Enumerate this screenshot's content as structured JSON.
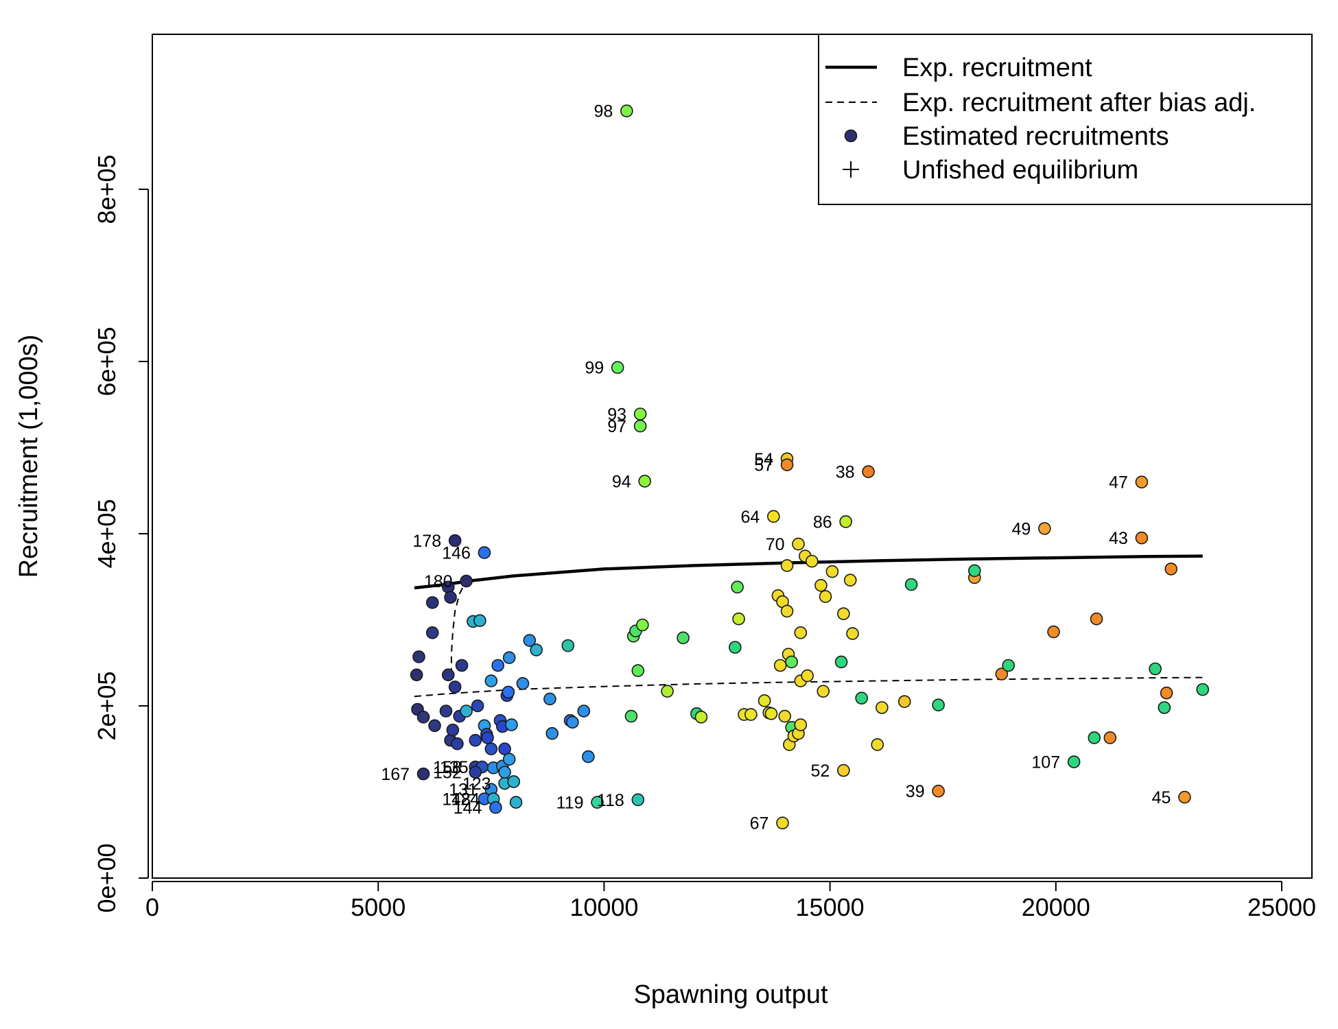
{
  "chart_data": {
    "type": "scatter",
    "title": "",
    "xlabel": "Spawning output",
    "ylabel": "Recruitment (1,000s)",
    "xlim": [
      0,
      25000
    ],
    "ylim": [
      0,
      980000
    ],
    "x_ticks": [
      0,
      5000,
      10000,
      15000,
      20000,
      25000
    ],
    "x_tick_labels": [
      "0",
      "5000",
      "10000",
      "15000",
      "20000",
      "25000"
    ],
    "y_ticks": [
      0,
      200000,
      400000,
      600000,
      800000
    ],
    "y_tick_labels": [
      "0e+00",
      "2e+05",
      "4e+05",
      "6e+05",
      "8e+05"
    ],
    "grid": false,
    "legend": {
      "placement": "top-right",
      "entries": [
        {
          "label": "Exp. recruitment",
          "symbol": "solid-line"
        },
        {
          "label": "Exp. recruitment after bias adj.",
          "symbol": "dashed-line"
        },
        {
          "label": "Estimated recruitments",
          "symbol": "filled-circle"
        },
        {
          "label": "Unfished equilibrium",
          "symbol": "plus"
        }
      ]
    },
    "lines": [
      {
        "name": "Exp. recruitment",
        "style": "solid",
        "x": [
          5800,
          6500,
          7000,
          8000,
          10000,
          12000,
          14000,
          16000,
          18000,
          20000,
          22000,
          23250
        ],
        "y": [
          337000,
          341000,
          345000,
          351000,
          359000,
          363000,
          366000,
          368500,
          370500,
          372000,
          373500,
          374000
        ]
      },
      {
        "name": "Exp. recruitment after bias adj.",
        "style": "dashed",
        "x": [
          5800,
          6500,
          8000,
          10000,
          12000,
          14000,
          16000,
          18000,
          20000,
          22000,
          23250
        ],
        "y": [
          211000,
          214000,
          219000,
          222500,
          225500,
          227500,
          229000,
          230500,
          231500,
          232500,
          233000
        ]
      },
      {
        "name": "Exp. recruitment after bias adj. (early years)",
        "style": "dashed",
        "x": [
          6620,
          6620,
          6650,
          6700,
          6800,
          6950
        ],
        "y": [
          236000,
          260000,
          285000,
          310000,
          330000,
          346000
        ]
      }
    ],
    "points": [
      {
        "label": "98",
        "x": 10500,
        "y": 891000,
        "color": "#7ff24a"
      },
      {
        "label": "99",
        "x": 10300,
        "y": 593000,
        "color": "#61f35f"
      },
      {
        "label": "93",
        "x": 10800,
        "y": 539000,
        "color": "#86f244"
      },
      {
        "label": "97",
        "x": 10800,
        "y": 525000,
        "color": "#74f350"
      },
      {
        "label": "94",
        "x": 10900,
        "y": 461000,
        "color": "#8ef23d"
      },
      {
        "label": "54",
        "x": 14050,
        "y": 487000,
        "color": "#f0c629"
      },
      {
        "label": "57",
        "x": 14050,
        "y": 480000,
        "color": "#f28a27"
      },
      {
        "label": "38",
        "x": 15850,
        "y": 472000,
        "color": "#f07f22"
      },
      {
        "label": "47",
        "x": 21900,
        "y": 460000,
        "color": "#f39c2c"
      },
      {
        "label": "64",
        "x": 13750,
        "y": 420000,
        "color": "#f7e021"
      },
      {
        "label": "86",
        "x": 15350,
        "y": 414000,
        "color": "#c2ee2f"
      },
      {
        "label": "49",
        "x": 19750,
        "y": 406000,
        "color": "#f3a531"
      },
      {
        "label": "43",
        "x": 21900,
        "y": 395000,
        "color": "#f28a27"
      },
      {
        "label": "70",
        "x": 14300,
        "y": 388000,
        "color": "#f2da2b"
      },
      {
        "label": "178",
        "x": 6700,
        "y": 392000,
        "color": "#2c2f72"
      },
      {
        "label": "146",
        "x": 7350,
        "y": 378000,
        "color": "#2a71ef"
      },
      {
        "label": "180",
        "x": 6950,
        "y": 345000,
        "color": "#2d2d6e"
      },
      {
        "label": "52",
        "x": 15300,
        "y": 125000,
        "color": "#f5cf2c"
      },
      {
        "label": "39",
        "x": 17400,
        "y": 101000,
        "color": "#f58a27"
      },
      {
        "label": "107",
        "x": 20400,
        "y": 135000,
        "color": "#2ed67e"
      },
      {
        "label": "45",
        "x": 22850,
        "y": 94000,
        "color": "#f29a2c"
      },
      {
        "label": "67",
        "x": 13950,
        "y": 64000,
        "color": "#f2da2b"
      },
      {
        "label": "167",
        "x": 6000,
        "y": 121000,
        "color": "#2d2f72"
      },
      {
        "label": "158",
        "x": 7150,
        "y": 129000,
        "color": "#2b3ca0"
      },
      {
        "label": "135",
        "x": 7300,
        "y": 129000,
        "color": "#2a53c4"
      },
      {
        "label": "152",
        "x": 7150,
        "y": 123000,
        "color": "#2b3ca0"
      },
      {
        "label": "131",
        "x": 7500,
        "y": 103000,
        "color": "#2d8fe6"
      },
      {
        "label": "123",
        "x": 7800,
        "y": 110000,
        "color": "#2cb2cf"
      },
      {
        "label": "148",
        "x": 7350,
        "y": 92000,
        "color": "#2a71ef"
      },
      {
        "label": "124",
        "x": 7550,
        "y": 92000,
        "color": "#2cb2cf"
      },
      {
        "label": "144",
        "x": 7600,
        "y": 82000,
        "color": "#2a71ef"
      },
      {
        "label": "119",
        "x": 9850,
        "y": 88000,
        "color": "#31d7a1"
      },
      {
        "label": "118",
        "x": 10750,
        "y": 91000,
        "color": "#2cc4b0"
      },
      {
        "label": "",
        "x": 5850,
        "y": 236000,
        "color": "#2e3070"
      },
      {
        "label": "",
        "x": 5900,
        "y": 257000,
        "color": "#2e3576"
      },
      {
        "label": "",
        "x": 5870,
        "y": 196000,
        "color": "#2e3070"
      },
      {
        "label": "",
        "x": 6000,
        "y": 187000,
        "color": "#2f3779"
      },
      {
        "label": "",
        "x": 6200,
        "y": 285000,
        "color": "#2d3a85"
      },
      {
        "label": "",
        "x": 6200,
        "y": 320000,
        "color": "#2c3478"
      },
      {
        "label": "",
        "x": 6250,
        "y": 177000,
        "color": "#2d3a82"
      },
      {
        "label": "",
        "x": 6500,
        "y": 194000,
        "color": "#2c3b8c"
      },
      {
        "label": "",
        "x": 6550,
        "y": 236000,
        "color": "#2d3581"
      },
      {
        "label": "",
        "x": 6550,
        "y": 338000,
        "color": "#2c2f72"
      },
      {
        "label": "",
        "x": 6600,
        "y": 326000,
        "color": "#2c2f72"
      },
      {
        "label": "",
        "x": 6600,
        "y": 160000,
        "color": "#2c3a8a"
      },
      {
        "label": "",
        "x": 6650,
        "y": 172000,
        "color": "#2c3a96"
      },
      {
        "label": "",
        "x": 6700,
        "y": 222000,
        "color": "#2c3a96"
      },
      {
        "label": "",
        "x": 6750,
        "y": 156000,
        "color": "#2b3fa0"
      },
      {
        "label": "",
        "x": 6800,
        "y": 188000,
        "color": "#2c3ea2"
      },
      {
        "label": "",
        "x": 6850,
        "y": 247000,
        "color": "#2c3b90"
      },
      {
        "label": "",
        "x": 6950,
        "y": 194000,
        "color": "#2cb2cf"
      },
      {
        "label": "",
        "x": 7100,
        "y": 298000,
        "color": "#2cb2cf"
      },
      {
        "label": "",
        "x": 7150,
        "y": 160000,
        "color": "#2b48b8"
      },
      {
        "label": "",
        "x": 7200,
        "y": 200000,
        "color": "#2b48b8"
      },
      {
        "label": "",
        "x": 7250,
        "y": 299000,
        "color": "#2cb2cf"
      },
      {
        "label": "",
        "x": 7350,
        "y": 177000,
        "color": "#2d9ee8"
      },
      {
        "label": "",
        "x": 7400,
        "y": 167000,
        "color": "#2a53c4"
      },
      {
        "label": "",
        "x": 7420,
        "y": 163000,
        "color": "#2a45cb"
      },
      {
        "label": "",
        "x": 7500,
        "y": 229000,
        "color": "#2d9ee8"
      },
      {
        "label": "",
        "x": 7500,
        "y": 150000,
        "color": "#2a53c4"
      },
      {
        "label": "",
        "x": 7550,
        "y": 128000,
        "color": "#2d8fe6"
      },
      {
        "label": "",
        "x": 7650,
        "y": 247000,
        "color": "#2a71ef"
      },
      {
        "label": "",
        "x": 7700,
        "y": 183000,
        "color": "#2a53c4"
      },
      {
        "label": "",
        "x": 7750,
        "y": 176000,
        "color": "#2a45cb"
      },
      {
        "label": "",
        "x": 7750,
        "y": 130000,
        "color": "#2d8fe6"
      },
      {
        "label": "",
        "x": 7800,
        "y": 123000,
        "color": "#2d9ee8"
      },
      {
        "label": "",
        "x": 7800,
        "y": 150000,
        "color": "#2a45cb"
      },
      {
        "label": "",
        "x": 7850,
        "y": 212000,
        "color": "#2a45cb"
      },
      {
        "label": "",
        "x": 7880,
        "y": 216000,
        "color": "#2a71ef"
      },
      {
        "label": "",
        "x": 7900,
        "y": 256000,
        "color": "#2d8fe6"
      },
      {
        "label": "",
        "x": 7900,
        "y": 138000,
        "color": "#2d9ee8"
      },
      {
        "label": "",
        "x": 7950,
        "y": 178000,
        "color": "#2d9ee8"
      },
      {
        "label": "",
        "x": 8000,
        "y": 112000,
        "color": "#2cb2cf"
      },
      {
        "label": "",
        "x": 8050,
        "y": 88000,
        "color": "#2cb2cf"
      },
      {
        "label": "",
        "x": 8200,
        "y": 226000,
        "color": "#2d8fe6"
      },
      {
        "label": "",
        "x": 8350,
        "y": 276000,
        "color": "#2d8fe6"
      },
      {
        "label": "",
        "x": 8500,
        "y": 265000,
        "color": "#2cb2cf"
      },
      {
        "label": "",
        "x": 8800,
        "y": 208000,
        "color": "#2d8fe6"
      },
      {
        "label": "",
        "x": 8850,
        "y": 168000,
        "color": "#2d8fe6"
      },
      {
        "label": "",
        "x": 9200,
        "y": 270000,
        "color": "#2ec4a4"
      },
      {
        "label": "",
        "x": 9250,
        "y": 183000,
        "color": "#2a71ef"
      },
      {
        "label": "",
        "x": 9300,
        "y": 181000,
        "color": "#2d8fe6"
      },
      {
        "label": "",
        "x": 9550,
        "y": 194000,
        "color": "#2d8fe6"
      },
      {
        "label": "",
        "x": 9650,
        "y": 141000,
        "color": "#2d8fe6"
      },
      {
        "label": "",
        "x": 10600,
        "y": 188000,
        "color": "#4fe06a"
      },
      {
        "label": "",
        "x": 10650,
        "y": 281000,
        "color": "#60ec5a"
      },
      {
        "label": "",
        "x": 10700,
        "y": 287000,
        "color": "#4fe06a"
      },
      {
        "label": "",
        "x": 10750,
        "y": 241000,
        "color": "#60ec5a"
      },
      {
        "label": "",
        "x": 10850,
        "y": 294000,
        "color": "#7ff24a"
      },
      {
        "label": "",
        "x": 11400,
        "y": 217000,
        "color": "#b0ee35"
      },
      {
        "label": "",
        "x": 11750,
        "y": 279000,
        "color": "#4fe06a"
      },
      {
        "label": "",
        "x": 12050,
        "y": 191000,
        "color": "#2ed67e"
      },
      {
        "label": "",
        "x": 12150,
        "y": 187000,
        "color": "#c2ee2f"
      },
      {
        "label": "",
        "x": 12900,
        "y": 268000,
        "color": "#2ed67e"
      },
      {
        "label": "",
        "x": 12950,
        "y": 338000,
        "color": "#60ec5a"
      },
      {
        "label": "",
        "x": 12980,
        "y": 301000,
        "color": "#c2ee2f"
      },
      {
        "label": "",
        "x": 13100,
        "y": 190000,
        "color": "#e6e52a"
      },
      {
        "label": "",
        "x": 13250,
        "y": 190000,
        "color": "#e6e52a"
      },
      {
        "label": "",
        "x": 13550,
        "y": 206000,
        "color": "#e6e52a"
      },
      {
        "label": "",
        "x": 13650,
        "y": 192000,
        "color": "#f2da2b"
      },
      {
        "label": "",
        "x": 13700,
        "y": 191000,
        "color": "#e6e52a"
      },
      {
        "label": "",
        "x": 13850,
        "y": 328000,
        "color": "#f2da2b"
      },
      {
        "label": "",
        "x": 13900,
        "y": 247000,
        "color": "#f2da2b"
      },
      {
        "label": "",
        "x": 13950,
        "y": 321000,
        "color": "#f2da2b"
      },
      {
        "label": "",
        "x": 14000,
        "y": 188000,
        "color": "#f2da2b"
      },
      {
        "label": "",
        "x": 14050,
        "y": 363000,
        "color": "#f2da2b"
      },
      {
        "label": "",
        "x": 14050,
        "y": 310000,
        "color": "#f2da2b"
      },
      {
        "label": "",
        "x": 14080,
        "y": 260000,
        "color": "#f2da2b"
      },
      {
        "label": "",
        "x": 14100,
        "y": 155000,
        "color": "#f2da2b"
      },
      {
        "label": "",
        "x": 14150,
        "y": 175000,
        "color": "#4fe06a"
      },
      {
        "label": "",
        "x": 14150,
        "y": 251000,
        "color": "#60ec5a"
      },
      {
        "label": "",
        "x": 14200,
        "y": 165000,
        "color": "#f2da2b"
      },
      {
        "label": "",
        "x": 14300,
        "y": 168000,
        "color": "#f2da2b"
      },
      {
        "label": "",
        "x": 14350,
        "y": 285000,
        "color": "#f2da2b"
      },
      {
        "label": "",
        "x": 14350,
        "y": 229000,
        "color": "#f2da2b"
      },
      {
        "label": "",
        "x": 14350,
        "y": 178000,
        "color": "#f2da2b"
      },
      {
        "label": "",
        "x": 14450,
        "y": 374000,
        "color": "#f2da2b"
      },
      {
        "label": "",
        "x": 14500,
        "y": 235000,
        "color": "#f2da2b"
      },
      {
        "label": "",
        "x": 14600,
        "y": 368000,
        "color": "#f2da2b"
      },
      {
        "label": "",
        "x": 14800,
        "y": 340000,
        "color": "#f2da2b"
      },
      {
        "label": "",
        "x": 14850,
        "y": 217000,
        "color": "#f2da2b"
      },
      {
        "label": "",
        "x": 14900,
        "y": 327000,
        "color": "#f2da2b"
      },
      {
        "label": "",
        "x": 15050,
        "y": 356000,
        "color": "#f2da2b"
      },
      {
        "label": "",
        "x": 15250,
        "y": 251000,
        "color": "#2ed67e"
      },
      {
        "label": "",
        "x": 15300,
        "y": 307000,
        "color": "#f2da2b"
      },
      {
        "label": "",
        "x": 15450,
        "y": 346000,
        "color": "#f2da2b"
      },
      {
        "label": "",
        "x": 15500,
        "y": 284000,
        "color": "#f2da2b"
      },
      {
        "label": "",
        "x": 15700,
        "y": 209000,
        "color": "#2ed67e"
      },
      {
        "label": "",
        "x": 16050,
        "y": 155000,
        "color": "#f2da2b"
      },
      {
        "label": "",
        "x": 16150,
        "y": 198000,
        "color": "#f2da2b"
      },
      {
        "label": "",
        "x": 16650,
        "y": 205000,
        "color": "#f3c62a"
      },
      {
        "label": "",
        "x": 16800,
        "y": 341000,
        "color": "#2ed67e"
      },
      {
        "label": "",
        "x": 17400,
        "y": 201000,
        "color": "#2ed67e"
      },
      {
        "label": "",
        "x": 18200,
        "y": 349000,
        "color": "#f3a531"
      },
      {
        "label": "",
        "x": 18200,
        "y": 357000,
        "color": "#2ed67e"
      },
      {
        "label": "",
        "x": 18800,
        "y": 237000,
        "color": "#f28a27"
      },
      {
        "label": "",
        "x": 18950,
        "y": 247000,
        "color": "#2ed67e"
      },
      {
        "label": "",
        "x": 19950,
        "y": 286000,
        "color": "#f28a27"
      },
      {
        "label": "",
        "x": 20850,
        "y": 163000,
        "color": "#2ed67e"
      },
      {
        "label": "",
        "x": 20900,
        "y": 301000,
        "color": "#f28a27"
      },
      {
        "label": "",
        "x": 21200,
        "y": 163000,
        "color": "#f28a27"
      },
      {
        "label": "",
        "x": 22200,
        "y": 243000,
        "color": "#2ed67e"
      },
      {
        "label": "",
        "x": 22400,
        "y": 198000,
        "color": "#2ed67e"
      },
      {
        "label": "",
        "x": 22450,
        "y": 215000,
        "color": "#f28a27"
      },
      {
        "label": "",
        "x": 22550,
        "y": 359000,
        "color": "#f28a27"
      },
      {
        "label": "",
        "x": 23250,
        "y": 219000,
        "color": "#2ed67e"
      }
    ]
  }
}
